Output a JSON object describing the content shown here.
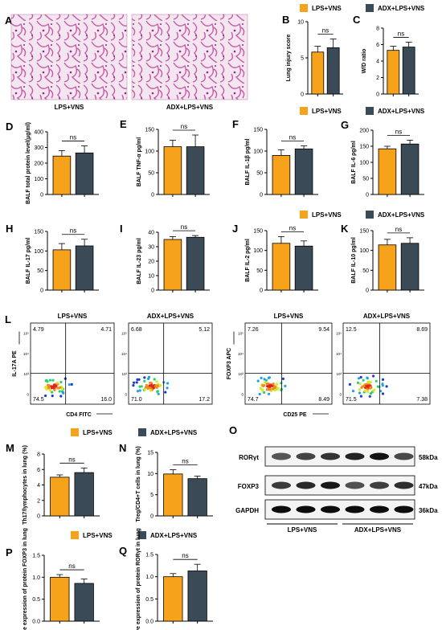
{
  "colors": {
    "lps": "#f7a21b",
    "adx": "#3a4a57"
  },
  "legend": {
    "lps": "LPS+VNS",
    "adx": "ADX+LPS+VNS"
  },
  "significance": "ns",
  "panel_a": {
    "label": "A",
    "images": [
      {
        "caption": "LPS+VNS"
      },
      {
        "caption": "ADX+LPS+VNS"
      }
    ]
  },
  "panel_l": {
    "label": "L",
    "th17": {
      "xaxis": "CD4 FITC",
      "yaxis": "IL-17A PE",
      "plots": [
        {
          "title": "LPS+VNS",
          "tl": "4.79",
          "tr": "4.71",
          "bl": "74.5",
          "br": "16.0"
        },
        {
          "title": "ADX+LPS+VNS",
          "tl": "6.68",
          "tr": "5.12",
          "bl": "71.0",
          "br": "17.2"
        }
      ]
    },
    "treg": {
      "xaxis": "CD25 PE",
      "yaxis": "FOXP3 APC",
      "plots": [
        {
          "title": "LPS+VNS",
          "tl": "7.26",
          "tr": "9.54",
          "bl": "74.7",
          "br": "8.49"
        },
        {
          "title": "ADX+LPS+VNS",
          "tl": "12.5",
          "tr": "8.69",
          "bl": "71.5",
          "br": "7.38"
        }
      ]
    },
    "tick_labels": [
      "-10³",
      "0",
      "10³",
      "10⁴",
      "10⁵"
    ]
  },
  "panel_o": {
    "label": "O",
    "bands": [
      {
        "protein": "RORγt",
        "kda": "58kDa"
      },
      {
        "protein": "FOXP3",
        "kda": "47kDa"
      },
      {
        "protein": "GAPDH",
        "kda": "36kDa"
      }
    ],
    "groups": [
      "LPS+VNS",
      "ADX+LPS+VNS"
    ]
  },
  "chart_data": [
    {
      "panel": "B",
      "type": "bar",
      "categories": [
        "LPS+VNS",
        "ADX+LPS+VNS"
      ],
      "values": [
        5.8,
        6.4
      ],
      "errors": [
        0.8,
        1.2
      ],
      "ylabel": "Lung injury score",
      "ylim": [
        0,
        10
      ],
      "yticks": [
        0,
        5,
        10
      ]
    },
    {
      "panel": "C",
      "type": "bar",
      "categories": [
        "LPS+VNS",
        "ADX+LPS+VNS"
      ],
      "values": [
        5.3,
        5.7
      ],
      "errors": [
        0.5,
        0.6
      ],
      "ylabel": "W/D ratio",
      "ylim": [
        0,
        8
      ],
      "yticks": [
        0,
        2,
        4,
        6,
        8
      ]
    },
    {
      "panel": "D",
      "type": "bar",
      "categories": [
        "LPS+VNS",
        "ADX+LPS+VNS"
      ],
      "values": [
        245,
        265
      ],
      "errors": [
        35,
        45
      ],
      "ylabel": "BALF total protein level(μg/ml)",
      "ylim": [
        0,
        400
      ],
      "yticks": [
        0,
        100,
        200,
        300,
        400
      ]
    },
    {
      "panel": "E",
      "type": "bar",
      "categories": [
        "LPS+VNS",
        "ADX+LPS+VNS"
      ],
      "values": [
        110,
        110
      ],
      "errors": [
        15,
        27
      ],
      "ylabel": "BALF TNF-α pg/ml",
      "ylim": [
        0,
        150
      ],
      "yticks": [
        0,
        50,
        100,
        150
      ]
    },
    {
      "panel": "F",
      "type": "bar",
      "categories": [
        "LPS+VNS",
        "ADX+LPS+VNS"
      ],
      "values": [
        90,
        105
      ],
      "errors": [
        13,
        7
      ],
      "ylabel": "BALF IL-1β pg/ml",
      "ylim": [
        0,
        150
      ],
      "yticks": [
        0,
        50,
        100,
        150
      ]
    },
    {
      "panel": "G",
      "type": "bar",
      "categories": [
        "LPS+VNS",
        "ADX+LPS+VNS"
      ],
      "values": [
        142,
        157
      ],
      "errors": [
        8,
        12
      ],
      "ylabel": "BALF IL-6 pg/ml",
      "ylim": [
        0,
        200
      ],
      "yticks": [
        0,
        50,
        100,
        150,
        200
      ]
    },
    {
      "panel": "H",
      "type": "bar",
      "categories": [
        "LPS+VNS",
        "ADX+LPS+VNS"
      ],
      "values": [
        103,
        113
      ],
      "errors": [
        16,
        17
      ],
      "ylabel": "BALF IL-17 pg/ml",
      "ylim": [
        0,
        150
      ],
      "yticks": [
        0,
        50,
        100,
        150
      ]
    },
    {
      "panel": "I",
      "type": "bar",
      "categories": [
        "LPS+VNS",
        "ADX+LPS+VNS"
      ],
      "values": [
        35,
        36.5
      ],
      "errors": [
        2,
        1.2
      ],
      "ylabel": "BALF IL-23 pg/ml",
      "ylim": [
        0,
        40
      ],
      "yticks": [
        0,
        10,
        20,
        30,
        40
      ]
    },
    {
      "panel": "J",
      "type": "bar",
      "categories": [
        "LPS+VNS",
        "ADX+LPS+VNS"
      ],
      "values": [
        118,
        111
      ],
      "errors": [
        17,
        13
      ],
      "ylabel": "BALF IL-2 pg/ml",
      "ylim": [
        0,
        150
      ],
      "yticks": [
        0,
        50,
        100,
        150
      ]
    },
    {
      "panel": "K",
      "type": "bar",
      "categories": [
        "LPS+VNS",
        "ADX+LPS+VNS"
      ],
      "values": [
        114,
        118
      ],
      "errors": [
        14,
        14
      ],
      "ylabel": "BALF IL-10 pg/ml",
      "ylim": [
        0,
        150
      ],
      "yticks": [
        0,
        50,
        100,
        150
      ]
    },
    {
      "panel": "M",
      "type": "bar",
      "categories": [
        "LPS+VNS",
        "ADX+LPS+VNS"
      ],
      "values": [
        5.0,
        5.6
      ],
      "errors": [
        0.3,
        0.6
      ],
      "ylabel": "Th17/lymphocytes in lung (%)",
      "ylim": [
        0,
        8
      ],
      "yticks": [
        0,
        2,
        4,
        6,
        8
      ]
    },
    {
      "panel": "N",
      "type": "bar",
      "categories": [
        "LPS+VNS",
        "ADX+LPS+VNS"
      ],
      "values": [
        9.9,
        8.8
      ],
      "errors": [
        1.0,
        0.6
      ],
      "ylabel": "Treg/CD4+T cells in lung (%)",
      "ylim": [
        0,
        15
      ],
      "yticks": [
        0,
        5,
        10,
        15
      ]
    },
    {
      "panel": "P",
      "type": "bar",
      "categories": [
        "LPS+VNS",
        "ADX+LPS+VNS"
      ],
      "values": [
        1.0,
        0.86
      ],
      "errors": [
        0.06,
        0.1
      ],
      "ylabel": "Relative expression of protein FOXP3 in lung",
      "ylim": [
        0,
        1.5
      ],
      "yticks": [
        0.0,
        0.5,
        1.0,
        1.5
      ]
    },
    {
      "panel": "Q",
      "type": "bar",
      "categories": [
        "LPS+VNS",
        "ADX+LPS+VNS"
      ],
      "values": [
        1.0,
        1.13
      ],
      "errors": [
        0.07,
        0.15
      ],
      "ylabel": "Relative expression of protein RORγt in lung",
      "ylim": [
        0,
        1.5
      ],
      "yticks": [
        0.0,
        0.5,
        1.0,
        1.5
      ]
    }
  ]
}
